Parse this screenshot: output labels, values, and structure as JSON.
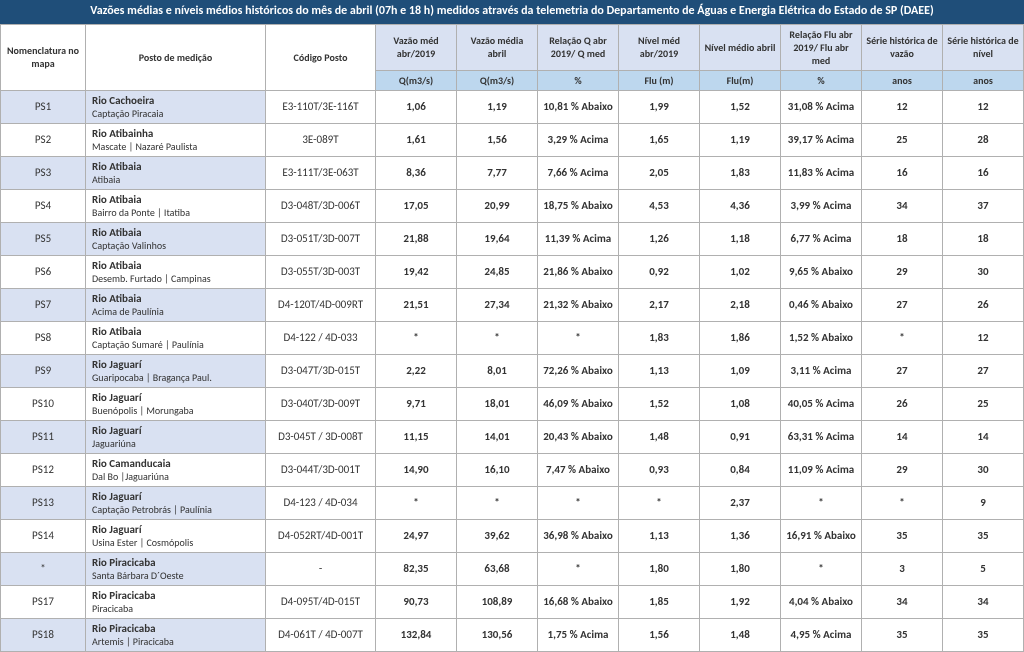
{
  "title": "Vazões médias e níveis médios históricos do mês de abril  (07h e 18 h) medidos através da telemetria do Departamento de Águas e Energia Elétrica do Estado de SP (DAEE)",
  "columns": {
    "nom": "Nomenclatura no mapa",
    "posto": "Posto de medição",
    "codigo": "Código Posto",
    "d1": "Vazão méd abr/2019",
    "d2": "Vazão média abril",
    "d3": "Relação Q abr 2019/ Q med",
    "d4": "Nível méd abr/2019",
    "d5": "Nível médio abril",
    "d6": "Relação Flu abr 2019/ Flu abr med",
    "d7": "Série histórica de vazão",
    "d8": "Série histórica de nível"
  },
  "units": {
    "d1": "Q(m3/s)",
    "d2": "Q(m3/s)",
    "d3": "%",
    "d4": "Flu (m)",
    "d5": "Flu(m)",
    "d6": "%",
    "d7": "anos",
    "d8": "anos"
  },
  "rows": [
    {
      "nom": "PS1",
      "river": "Rio Cachoeira",
      "loc": "Captação Piracaia",
      "codigo": "E3-110T/3E-116T",
      "d1": "1,06",
      "d2": "1,19",
      "d3": "10,81 % Abaixo",
      "d4": "1,99",
      "d5": "1,52",
      "d6": "31,08 % Acima",
      "d7": "12",
      "d8": "12"
    },
    {
      "nom": "PS2",
      "river": "Rio Atibainha",
      "loc": "Mascate | Nazaré Paulista",
      "codigo": "3E-089T",
      "d1": "1,61",
      "d2": "1,56",
      "d3": "3,29 % Acima",
      "d4": "1,65",
      "d5": "1,19",
      "d6": "39,17 % Acima",
      "d7": "25",
      "d8": "28"
    },
    {
      "nom": "PS3",
      "river": "Rio Atibaia",
      "loc": "Atibaia",
      "codigo": "E3-111T/3E-063T",
      "d1": "8,36",
      "d2": "7,77",
      "d3": "7,66 % Acima",
      "d4": "2,05",
      "d5": "1,83",
      "d6": "11,83 % Acima",
      "d7": "16",
      "d8": "16"
    },
    {
      "nom": "PS4",
      "river": "Rio Atibaia",
      "loc": "Bairro da Ponte | Itatiba",
      "codigo": "D3-048T/3D-006T",
      "d1": "17,05",
      "d2": "20,99",
      "d3": "18,75 % Abaixo",
      "d4": "4,53",
      "d5": "4,36",
      "d6": "3,99 % Acima",
      "d7": "34",
      "d8": "37"
    },
    {
      "nom": "PS5",
      "river": "Rio Atibaia",
      "loc": "Captação Valinhos",
      "codigo": "D3-051T/3D-007T",
      "d1": "21,88",
      "d2": "19,64",
      "d3": "11,39 % Acima",
      "d4": "1,26",
      "d5": "1,18",
      "d6": "6,77 % Acima",
      "d7": "18",
      "d8": "18"
    },
    {
      "nom": "PS6",
      "river": "Rio Atibaia",
      "loc": "Desemb. Furtado | Campinas",
      "codigo": "D3-055T/3D-003T",
      "d1": "19,42",
      "d2": "24,85",
      "d3": "21,86 % Abaixo",
      "d4": "0,92",
      "d5": "1,02",
      "d6": "9,65 % Abaixo",
      "d7": "29",
      "d8": "30"
    },
    {
      "nom": "PS7",
      "river": "Rio Atibaia",
      "loc": "Acima de Paulínia",
      "codigo": "D4-120T/4D-009RT",
      "d1": "21,51",
      "d2": "27,34",
      "d3": "21,32 % Abaixo",
      "d4": "2,17",
      "d5": "2,18",
      "d6": "0,46 % Abaixo",
      "d7": "27",
      "d8": "26"
    },
    {
      "nom": "PS8",
      "river": "Rio Atibaia",
      "loc": "Captação Sumaré | Paulínia",
      "codigo": "D4-122 / 4D-033",
      "d1": "*",
      "d2": "*",
      "d3": "*",
      "d4": "1,83",
      "d5": "1,86",
      "d6": "1,52 % Abaixo",
      "d7": "*",
      "d8": "12"
    },
    {
      "nom": "PS9",
      "river": "Rio Jaguarí",
      "loc": "Guaripocaba | Bragança Paul.",
      "codigo": "D3-047T/3D-015T",
      "d1": "2,22",
      "d2": "8,01",
      "d3": "72,26 % Abaixo",
      "d4": "1,13",
      "d5": "1,09",
      "d6": "3,11 % Acima",
      "d7": "27",
      "d8": "27"
    },
    {
      "nom": "PS10",
      "river": "Rio Jaguarí",
      "loc": "Buenópolis | Morungaba",
      "codigo": "D3-040T/3D-009T",
      "d1": "9,71",
      "d2": "18,01",
      "d3": "46,09 % Abaixo",
      "d4": "1,52",
      "d5": "1,08",
      "d6": "40,05 % Acima",
      "d7": "26",
      "d8": "25"
    },
    {
      "nom": "PS11",
      "river": "Rio Jaguarí",
      "loc": "Jaguariúna",
      "codigo": "D3-045T / 3D-008T",
      "d1": "11,15",
      "d2": "14,01",
      "d3": "20,43 % Abaixo",
      "d4": "1,48",
      "d5": "0,91",
      "d6": "63,31 % Acima",
      "d7": "14",
      "d8": "14"
    },
    {
      "nom": "PS12",
      "river": "Rio Camanducaia",
      "loc": "Dal Bo |Jaguariúna",
      "codigo": "D3-044T/3D-001T",
      "d1": "14,90",
      "d2": "16,10",
      "d3": "7,47 % Abaixo",
      "d4": "0,93",
      "d5": "0,84",
      "d6": "11,09 % Acima",
      "d7": "29",
      "d8": "30"
    },
    {
      "nom": "PS13",
      "river": "Rio Jaguarí",
      "loc": "Captação Petrobrás | Paulínia",
      "codigo": "D4-123 / 4D-034",
      "d1": "*",
      "d2": "*",
      "d3": "*",
      "d4": "*",
      "d5": "2,37",
      "d6": "*",
      "d7": "*",
      "d8": "9"
    },
    {
      "nom": "PS14",
      "river": "Rio Jaguarí",
      "loc": "Usina Ester | Cosmópolis",
      "codigo": "D4-052RT/4D-001T",
      "d1": "24,97",
      "d2": "39,62",
      "d3": "36,98 % Abaixo",
      "d4": "1,13",
      "d5": "1,36",
      "d6": "16,91 % Abaixo",
      "d7": "35",
      "d8": "35"
    },
    {
      "nom": "*",
      "river": "Rio Piracicaba",
      "loc": "Santa Bárbara D´Oeste",
      "codigo": "-",
      "d1": "82,35",
      "d2": "63,68",
      "d3": "*",
      "d4": "1,80",
      "d5": "1,80",
      "d6": "*",
      "d7": "3",
      "d8": "5"
    },
    {
      "nom": "PS17",
      "river": "Rio Piracicaba",
      "loc": "Piracicaba",
      "codigo": "D4-095T/4D-015T",
      "d1": "90,73",
      "d2": "108,89",
      "d3": "16,68 % Abaixo",
      "d4": "1,85",
      "d5": "1,92",
      "d6": "4,04 % Abaixo",
      "d7": "34",
      "d8": "34"
    },
    {
      "nom": "PS18",
      "river": "Rio Piracicaba",
      "loc": "Artemis | Piracicaba",
      "codigo": "D4-061T / 4D-007T",
      "d1": "132,84",
      "d2": "130,56",
      "d3": "1,75 % Acima",
      "d4": "1,56",
      "d5": "1,48",
      "d6": "4,95 % Acima",
      "d7": "35",
      "d8": "35"
    }
  ],
  "style": {
    "title_bg": "#1f4e79",
    "title_fg": "#ffffff",
    "header_data_bg": "#d9e1f2",
    "header_unit_bg": "#bdd7ee",
    "row_alt_bg": "#d9e1f2",
    "border_color": "#b0b0b0"
  }
}
